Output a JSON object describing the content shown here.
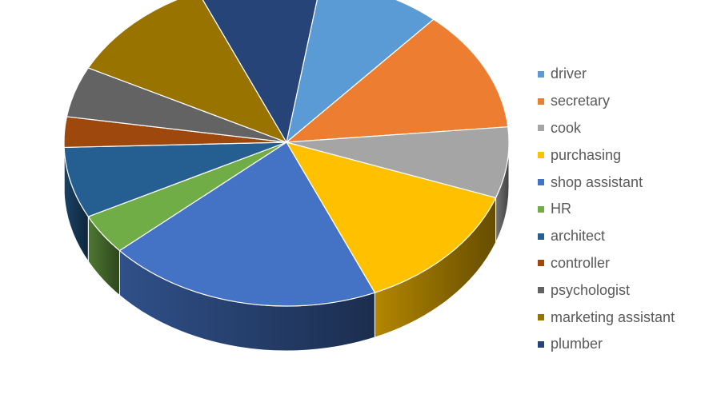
{
  "chart_data": {
    "type": "pie",
    "style": "3d",
    "title": "",
    "legend_position": "right",
    "categories": [
      "driver",
      "secretary",
      "cook",
      "purchasing",
      "shop assistant",
      "HR",
      "architect",
      "controller",
      "psychologist",
      "marketing assistant",
      "plumber"
    ],
    "values": [
      9,
      12,
      7,
      13,
      20,
      4,
      7,
      3,
      5,
      11,
      9
    ],
    "colors": [
      "#5B9BD5",
      "#ED7D31",
      "#A5A5A5",
      "#FFC000",
      "#4472C4",
      "#70AD47",
      "#255E91",
      "#9E480E",
      "#636363",
      "#997300",
      "#264478"
    ]
  }
}
